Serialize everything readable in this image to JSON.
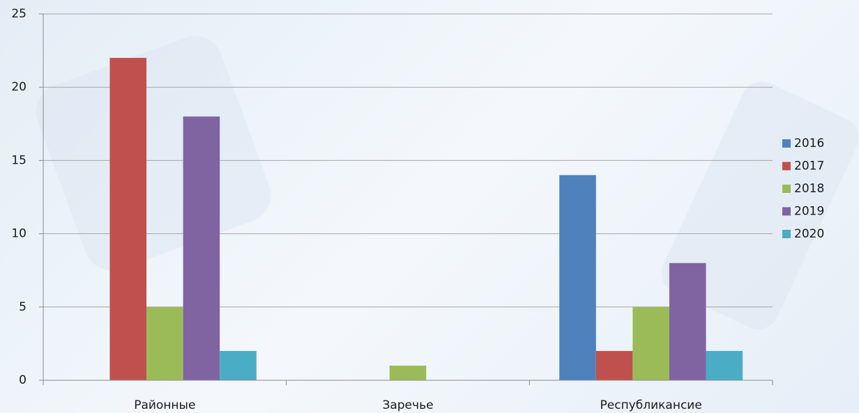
{
  "chart_data": {
    "type": "bar",
    "categories": [
      "Районные",
      "Заречье",
      "Республикансие"
    ],
    "series": [
      {
        "name": "2016",
        "color": "#4f81bd",
        "values": [
          0,
          0,
          14
        ]
      },
      {
        "name": "2017",
        "color": "#c0504d",
        "values": [
          22,
          0,
          2
        ]
      },
      {
        "name": "2018",
        "color": "#9bbb59",
        "values": [
          5,
          1,
          5
        ]
      },
      {
        "name": "2019",
        "color": "#8064a2",
        "values": [
          18,
          0,
          8
        ]
      },
      {
        "name": "2020",
        "color": "#4bacc6",
        "values": [
          2,
          0,
          2
        ]
      }
    ],
    "ylim": [
      0,
      25
    ],
    "yticks": [
      0,
      5,
      10,
      15,
      20,
      25
    ],
    "grid": true,
    "legend": "right"
  }
}
